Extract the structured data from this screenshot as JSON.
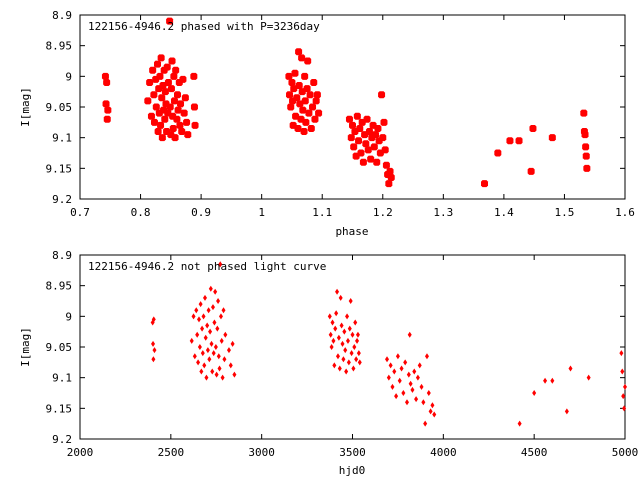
{
  "chart_data": [
    {
      "type": "scatter",
      "title": "122156-4946.2 phased with P=3236day",
      "xlabel": "phase",
      "ylabel": "I[mag]",
      "xlim": [
        0.7,
        1.6
      ],
      "ylim": [
        8.9,
        9.2
      ],
      "y_inverted": true,
      "xticks": [
        "0.7",
        "0.8",
        "0.9",
        "1",
        "1.1",
        "1.2",
        "1.3",
        "1.4",
        "1.5",
        "1.6"
      ],
      "yticks": [
        "8.9",
        "8.95",
        "9",
        "9.05",
        "9.1",
        "9.15",
        "9.2"
      ],
      "grid": false,
      "marker": "filled-square",
      "color": "#ff0000",
      "series": [
        {
          "x": [
            0.742,
            0.743,
            0.744,
            0.745,
            0.746,
            0.812,
            0.815,
            0.818,
            0.82,
            0.822,
            0.823,
            0.825,
            0.826,
            0.828,
            0.829,
            0.83,
            0.831,
            0.832,
            0.833,
            0.834,
            0.835,
            0.836,
            0.837,
            0.838,
            0.839,
            0.84,
            0.841,
            0.842,
            0.843,
            0.844,
            0.845,
            0.846,
            0.848,
            0.849,
            0.85,
            0.851,
            0.852,
            0.853,
            0.854,
            0.855,
            0.856,
            0.857,
            0.858,
            0.86,
            0.861,
            0.862,
            0.864,
            0.865,
            0.866,
            0.868,
            0.87,
            0.872,
            0.874,
            0.876,
            0.878,
            0.888,
            0.889,
            0.89,
            1.045,
            1.046,
            1.048,
            1.05,
            1.051,
            1.052,
            1.053,
            1.055,
            1.056,
            1.058,
            1.06,
            1.061,
            1.062,
            1.063,
            1.065,
            1.066,
            1.067,
            1.068,
            1.07,
            1.071,
            1.072,
            1.073,
            1.075,
            1.076,
            1.078,
            1.08,
            1.082,
            1.084,
            1.086,
            1.088,
            1.09,
            1.092,
            1.094,
            1.145,
            1.148,
            1.15,
            1.152,
            1.154,
            1.156,
            1.158,
            1.16,
            1.162,
            1.164,
            1.166,
            1.168,
            1.17,
            1.172,
            1.174,
            1.176,
            1.178,
            1.18,
            1.182,
            1.184,
            1.186,
            1.188,
            1.19,
            1.192,
            1.194,
            1.196,
            1.198,
            1.2,
            1.202,
            1.204,
            1.206,
            1.208,
            1.21,
            1.212,
            1.214,
            1.368,
            1.39,
            1.41,
            1.425,
            1.445,
            1.448,
            1.48,
            1.532,
            1.533,
            1.534,
            1.535,
            1.536,
            1.537
          ],
          "y": [
            9.0,
            9.045,
            9.01,
            9.07,
            9.055,
            9.04,
            9.01,
            9.065,
            8.99,
            9.03,
            9.075,
            9.005,
            9.05,
            8.98,
            9.09,
            9.02,
            9.06,
            9.0,
            9.08,
            8.97,
            9.035,
            9.1,
            9.015,
            9.055,
            8.99,
            9.07,
            9.025,
            9.045,
            9.09,
            8.985,
            9.06,
            9.01,
            8.91,
            9.05,
            9.095,
            9.02,
            8.975,
            9.065,
            9.085,
            9.0,
            9.04,
            9.1,
            8.99,
            9.07,
            9.03,
            9.055,
            9.01,
            9.08,
            9.045,
            9.09,
            9.005,
            9.06,
            9.035,
            9.075,
            9.095,
            9.0,
            9.05,
            9.08,
            9.0,
            9.03,
            9.05,
            9.01,
            9.04,
            9.08,
            9.02,
            8.995,
            9.065,
            9.035,
            9.085,
            8.96,
            9.015,
            9.045,
            9.07,
            8.97,
            9.025,
            9.055,
            9.09,
            9.0,
            9.04,
            9.075,
            9.02,
            8.975,
            9.06,
            9.03,
            9.085,
            9.05,
            9.01,
            9.07,
            9.04,
            9.03,
            9.06,
            9.07,
            9.1,
            9.08,
            9.115,
            9.09,
            9.13,
            9.065,
            9.105,
            9.085,
            9.125,
            9.075,
            9.14,
            9.095,
            9.11,
            9.07,
            9.12,
            9.09,
            9.135,
            9.1,
            9.08,
            9.115,
            9.095,
            9.14,
            9.085,
            9.105,
            9.125,
            9.03,
            9.1,
            9.075,
            9.12,
            9.145,
            9.16,
            9.175,
            9.155,
            9.165,
            9.175,
            9.125,
            9.105,
            9.105,
            9.155,
            9.085,
            9.1,
            9.06,
            9.09,
            9.095,
            9.115,
            9.13,
            9.15
          ]
        }
      ]
    },
    {
      "type": "scatter",
      "title": "122156-4946.2 not phased light curve",
      "xlabel": "hjd0",
      "ylabel": "I[mag]",
      "xlim": [
        2000,
        5000
      ],
      "ylim": [
        8.9,
        9.2
      ],
      "y_inverted": true,
      "xticks": [
        "2000",
        "2500",
        "3000",
        "3500",
        "4000",
        "4500",
        "5000"
      ],
      "yticks": [
        "8.9",
        "8.95",
        "9",
        "9.05",
        "9.1",
        "9.15",
        "9.2"
      ],
      "grid": false,
      "marker": "diamond",
      "color": "#ff0000",
      "series": [
        {
          "x": [
            2400,
            2402,
            2404,
            2406,
            2410,
            2615,
            2625,
            2632,
            2640,
            2645,
            2650,
            2655,
            2660,
            2664,
            2668,
            2672,
            2676,
            2680,
            2684,
            2688,
            2692,
            2696,
            2700,
            2704,
            2708,
            2712,
            2716,
            2720,
            2724,
            2728,
            2732,
            2736,
            2740,
            2744,
            2748,
            2752,
            2756,
            2760,
            2764,
            2768,
            2772,
            2776,
            2780,
            2785,
            2790,
            2795,
            2800,
            2820,
            2830,
            2840,
            2850,
            3375,
            3380,
            3385,
            3390,
            3395,
            3400,
            3405,
            3410,
            3415,
            3420,
            3425,
            3430,
            3435,
            3440,
            3445,
            3450,
            3455,
            3460,
            3465,
            3470,
            3475,
            3480,
            3485,
            3490,
            3495,
            3500,
            3505,
            3510,
            3515,
            3520,
            3525,
            3530,
            3535,
            3540,
            3690,
            3700,
            3710,
            3720,
            3730,
            3740,
            3750,
            3760,
            3770,
            3780,
            3790,
            3800,
            3810,
            3815,
            3820,
            3830,
            3840,
            3850,
            3860,
            3870,
            3880,
            3890,
            3900,
            3910,
            3920,
            3930,
            3940,
            3950,
            4420,
            4500,
            4560,
            4600,
            4680,
            4700,
            4800,
            4980,
            4985,
            4990,
            4995,
            5000
          ],
          "y": [
            9.01,
            9.045,
            9.07,
            9.005,
            9.055,
            9.04,
            9.0,
            9.065,
            8.99,
            9.03,
            9.075,
            9.005,
            9.05,
            8.98,
            9.09,
            9.02,
            9.06,
            9.0,
            9.08,
            8.97,
            9.035,
            9.1,
            9.015,
            9.055,
            8.99,
            9.07,
            9.025,
            8.955,
            9.045,
            9.09,
            8.985,
            9.06,
            9.01,
            8.96,
            9.05,
            9.095,
            9.02,
            8.975,
            9.065,
            9.085,
            8.915,
            9.0,
            9.04,
            9.1,
            8.99,
            9.07,
            9.03,
            9.055,
            9.08,
            9.045,
            9.095,
            9.0,
            9.03,
            9.05,
            9.01,
            9.04,
            9.08,
            9.02,
            8.995,
            8.96,
            9.065,
            9.035,
            9.085,
            8.97,
            9.015,
            9.045,
            9.07,
            9.025,
            9.055,
            9.09,
            9.0,
            9.04,
            9.075,
            9.02,
            8.975,
            9.06,
            9.03,
            9.085,
            9.05,
            9.01,
            9.07,
            9.04,
            9.03,
            9.06,
            9.075,
            9.07,
            9.1,
            9.08,
            9.115,
            9.09,
            9.13,
            9.065,
            9.105,
            9.085,
            9.125,
            9.075,
            9.14,
            9.095,
            9.03,
            9.11,
            9.12,
            9.09,
            9.135,
            9.1,
            9.08,
            9.115,
            9.14,
            9.175,
            9.065,
            9.125,
            9.155,
            9.145,
            9.16,
            9.175,
            9.125,
            9.105,
            9.105,
            9.155,
            9.085,
            9.1,
            9.06,
            9.09,
            9.13,
            9.15,
            9.115
          ]
        }
      ]
    }
  ]
}
